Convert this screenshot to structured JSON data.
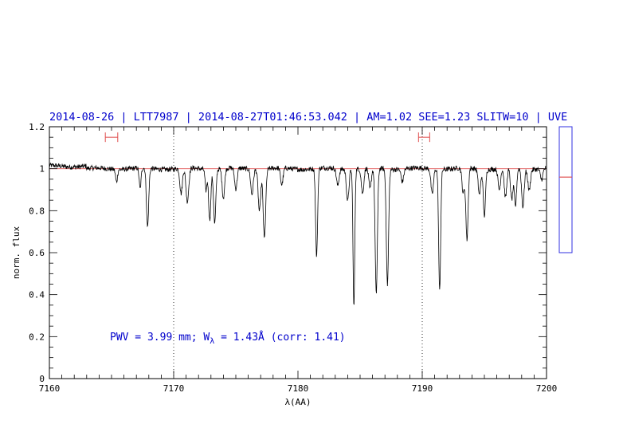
{
  "chart_data": {
    "type": "line",
    "title": "2014-08-26 | LTT7987 | 2014-08-27T01:46:53.042 | AM=1.02 SEE=1.23 SLITW=10 | UVE",
    "xlabel": "λ(AA)",
    "ylabel": "norm. flux",
    "xlim": [
      7160,
      7200
    ],
    "ylim": [
      0,
      1.2
    ],
    "x_ticks": [
      7160,
      7170,
      7180,
      7190,
      7200
    ],
    "x_tick_labels": [
      "7160",
      "7170",
      "7180",
      "7190",
      "7200"
    ],
    "y_ticks": [
      0,
      0.2,
      0.4,
      0.6,
      0.8,
      1,
      1.2
    ],
    "y_tick_labels": [
      "0",
      "0.2",
      "0.4",
      "0.6",
      "0.8",
      "1",
      "1.2"
    ],
    "grid": false,
    "reference_lines": [
      {
        "orientation": "vertical",
        "x": 7170,
        "style": "dotted"
      },
      {
        "orientation": "vertical",
        "x": 7190,
        "style": "dotted"
      },
      {
        "orientation": "horizontal",
        "y": 1.0,
        "color": "#e05050"
      }
    ],
    "continuum_windows": [
      {
        "x_range": [
          7164.5,
          7165.5
        ],
        "y": 1.15
      },
      {
        "x_range": [
          7189.7,
          7190.6
        ],
        "y": 1.15
      }
    ],
    "absorption_lines": [
      {
        "x": 7165.4,
        "depth": 0.06,
        "width": 0.15
      },
      {
        "x": 7167.3,
        "depth": 0.1,
        "width": 0.15
      },
      {
        "x": 7167.9,
        "depth": 0.28,
        "width": 0.18
      },
      {
        "x": 7170.6,
        "depth": 0.12,
        "width": 0.2
      },
      {
        "x": 7171.1,
        "depth": 0.16,
        "width": 0.22
      },
      {
        "x": 7172.6,
        "depth": 0.1,
        "width": 0.15
      },
      {
        "x": 7172.9,
        "depth": 0.24,
        "width": 0.18
      },
      {
        "x": 7173.3,
        "depth": 0.26,
        "width": 0.18
      },
      {
        "x": 7174.0,
        "depth": 0.14,
        "width": 0.2
      },
      {
        "x": 7175.0,
        "depth": 0.1,
        "width": 0.2
      },
      {
        "x": 7176.3,
        "depth": 0.12,
        "width": 0.2
      },
      {
        "x": 7176.9,
        "depth": 0.2,
        "width": 0.2
      },
      {
        "x": 7177.3,
        "depth": 0.33,
        "width": 0.2
      },
      {
        "x": 7178.7,
        "depth": 0.08,
        "width": 0.2
      },
      {
        "x": 7181.5,
        "depth": 0.42,
        "width": 0.16
      },
      {
        "x": 7183.2,
        "depth": 0.08,
        "width": 0.2
      },
      {
        "x": 7184.0,
        "depth": 0.15,
        "width": 0.2
      },
      {
        "x": 7184.5,
        "depth": 0.66,
        "width": 0.14
      },
      {
        "x": 7185.2,
        "depth": 0.12,
        "width": 0.2
      },
      {
        "x": 7185.8,
        "depth": 0.1,
        "width": 0.2
      },
      {
        "x": 7186.3,
        "depth": 0.6,
        "width": 0.18
      },
      {
        "x": 7187.2,
        "depth": 0.55,
        "width": 0.18
      },
      {
        "x": 7188.4,
        "depth": 0.06,
        "width": 0.2
      },
      {
        "x": 7190.8,
        "depth": 0.12,
        "width": 0.2
      },
      {
        "x": 7191.4,
        "depth": 0.58,
        "width": 0.16
      },
      {
        "x": 7193.3,
        "depth": 0.12,
        "width": 0.2
      },
      {
        "x": 7193.6,
        "depth": 0.34,
        "width": 0.18
      },
      {
        "x": 7194.6,
        "depth": 0.12,
        "width": 0.2
      },
      {
        "x": 7195.0,
        "depth": 0.22,
        "width": 0.18
      },
      {
        "x": 7196.2,
        "depth": 0.1,
        "width": 0.2
      },
      {
        "x": 7196.7,
        "depth": 0.14,
        "width": 0.2
      },
      {
        "x": 7197.2,
        "depth": 0.15,
        "width": 0.2
      },
      {
        "x": 7197.5,
        "depth": 0.18,
        "width": 0.18
      },
      {
        "x": 7198.1,
        "depth": 0.18,
        "width": 0.2
      },
      {
        "x": 7198.6,
        "depth": 0.1,
        "width": 0.2
      },
      {
        "x": 7199.6,
        "depth": 0.05,
        "width": 0.2
      }
    ],
    "annotation": {
      "prefix": "PWV = 3.99 mm; W",
      "subscript": "λ",
      "suffix": " = 1.43Å (corr: 1.41)"
    },
    "side_panel": {
      "ylim": [
        0.6,
        1.2
      ],
      "marker_value": 0.96
    }
  },
  "colors": {
    "axis": "#000000",
    "spectrum": "#000000",
    "fit": "#e05050",
    "text": "#0000cc",
    "side_panel_border": "#3030e0"
  }
}
